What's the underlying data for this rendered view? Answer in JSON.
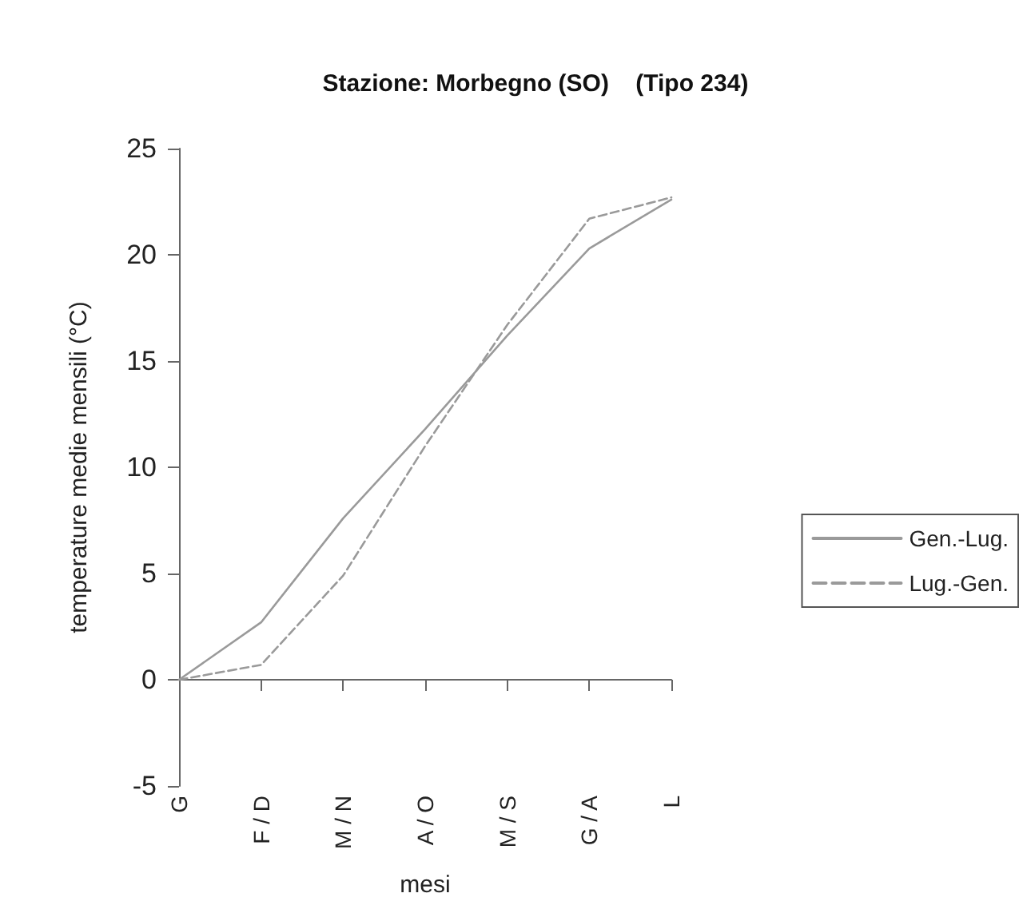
{
  "chart_data": {
    "type": "line",
    "title": "Stazione: Morbegno (SO)    (Tipo 234)",
    "xlabel": "mesi",
    "ylabel": "temperature medie mensili (°C)",
    "categories": [
      "G",
      "F / D",
      "M / N",
      "A / O",
      "M / S",
      "G / A",
      "L"
    ],
    "series": [
      {
        "name": "Gen.-Lug.",
        "color": "#9a9a9a",
        "line_style": "solid",
        "values": [
          0,
          2.7,
          7.6,
          11.8,
          16.2,
          20.3,
          22.6
        ]
      },
      {
        "name": "Lug.-Gen.",
        "color": "#9a9a9a",
        "line_style": "dashed",
        "values": [
          0,
          0.7,
          4.9,
          11,
          16.7,
          21.7,
          22.7
        ]
      }
    ],
    "ylim": [
      -5,
      25
    ],
    "yticks": [
      -5,
      0,
      5,
      10,
      15,
      20,
      25
    ],
    "legend": "right",
    "marker": "none"
  }
}
